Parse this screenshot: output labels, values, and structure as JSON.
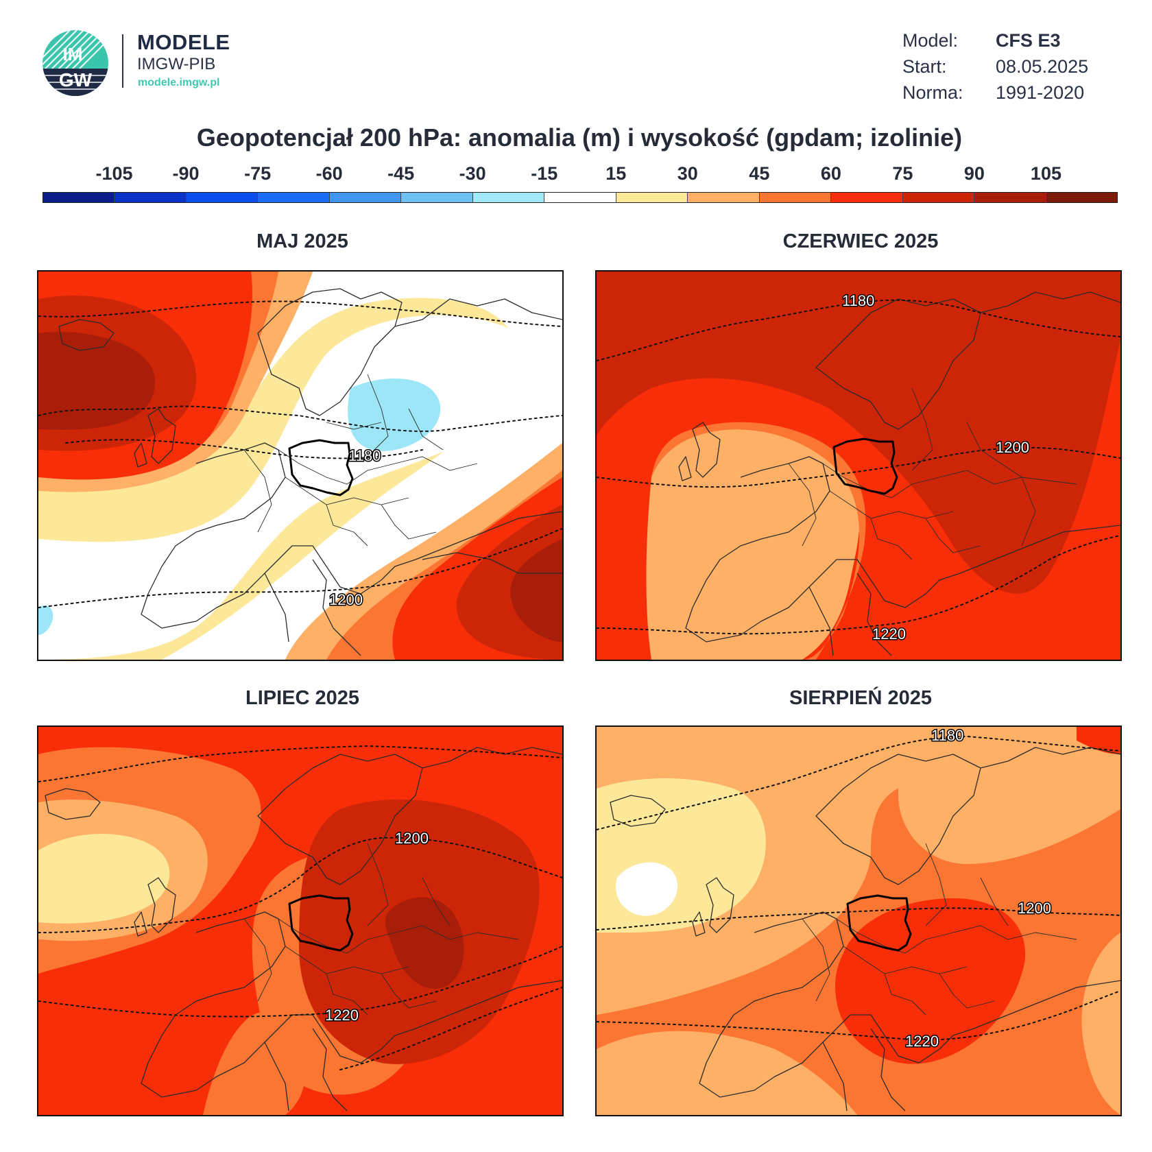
{
  "brand": {
    "logo_text_top": "IM",
    "logo_text_bottom": "GW",
    "title": "MODELE",
    "subtitle": "IMGW-PIB",
    "url": "modele.imgw.pl"
  },
  "meta": [
    {
      "key": "Model:",
      "value": "CFS E3",
      "bold": true
    },
    {
      "key": "Start:",
      "value": "08.05.2025",
      "bold": false
    },
    {
      "key": "Norma:",
      "value": "1991-2020",
      "bold": false
    }
  ],
  "title": "Geopotencjał 200 hPa: anomalia (m) i wysokość (gpdam; izolinie)",
  "colorbar": {
    "colors": [
      "#0b1e8c",
      "#0a34c8",
      "#0a4ef0",
      "#1a6cf5",
      "#3e96f0",
      "#6ec0f3",
      "#a3e8f7",
      "#ffffff",
      "#fde89a",
      "#fdb066",
      "#fb7533",
      "#f72e08",
      "#cc2508",
      "#a81e08",
      "#7d1a0a"
    ],
    "labels": [
      "-105",
      "-90",
      "-75",
      "-60",
      "-45",
      "-30",
      "-15",
      "15",
      "30",
      "45",
      "60",
      "75",
      "90",
      "105"
    ]
  },
  "palette": {
    "lt15": "#ffffff",
    "15_30": "#fde89a",
    "30_45": "#fdb066",
    "45_60": "#fb7533",
    "60_75": "#f72e08",
    "75_90": "#cc2508",
    "90_105": "#a81e08",
    "neg15_30": "#9de6f8"
  },
  "panels": [
    {
      "title": "MAJ 2025",
      "isolines": [
        "1180",
        "1200"
      ]
    },
    {
      "title": "CZERWIEC 2025",
      "isolines": [
        "1180",
        "1200",
        "1220"
      ]
    },
    {
      "title": "LIPIEC 2025",
      "isolines": [
        "1200",
        "1220"
      ]
    },
    {
      "title": "SIERPIEŃ 2025",
      "isolines": [
        "1180",
        "1200",
        "1220"
      ]
    }
  ]
}
